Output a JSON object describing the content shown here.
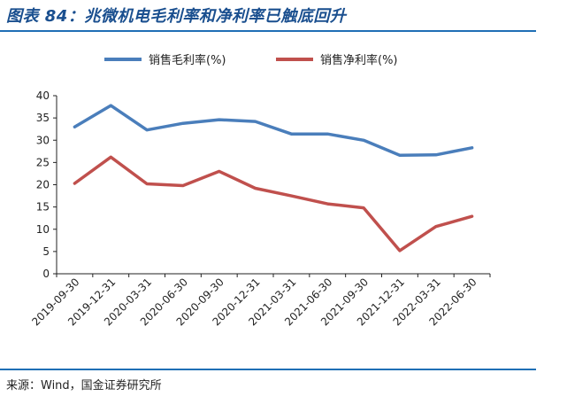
{
  "header": {
    "title": "图表 84：兆微机电毛利率和净利率已触底回升"
  },
  "footer": {
    "source": "来源：Wind，国金证券研究所"
  },
  "chart_data": {
    "type": "line",
    "title": "兆微机电毛利率和净利率已触底回升",
    "xlabel": "",
    "ylabel": "",
    "ylim": [
      0,
      40
    ],
    "yticks": [
      0,
      5,
      10,
      15,
      20,
      25,
      30,
      35,
      40
    ],
    "grid": false,
    "legend_position": "top",
    "categories": [
      "2019-09-30",
      "2019-12-31",
      "2020-03-31",
      "2020-06-30",
      "2020-09-30",
      "2020-12-31",
      "2021-03-31",
      "2021-06-30",
      "2021-09-30",
      "2021-12-31",
      "2022-03-31",
      "2022-06-30"
    ],
    "series": [
      {
        "name": "销售毛利率(%)",
        "color": "#4a7ebb",
        "values": [
          33.0,
          37.8,
          32.3,
          33.8,
          34.6,
          34.2,
          31.4,
          31.4,
          30.0,
          26.6,
          26.7,
          28.3
        ]
      },
      {
        "name": "销售净利率(%)",
        "color": "#c0504d",
        "values": [
          20.3,
          26.2,
          20.2,
          19.8,
          23.0,
          19.2,
          17.5,
          15.7,
          14.8,
          5.2,
          10.6,
          12.9
        ]
      }
    ]
  }
}
